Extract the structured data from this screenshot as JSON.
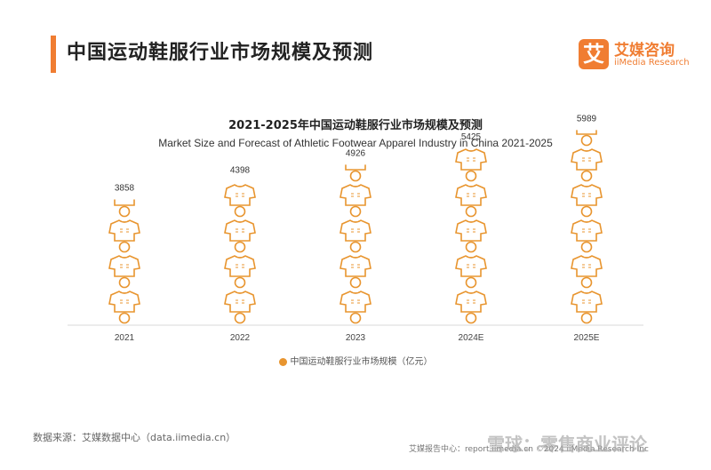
{
  "header": {
    "title": "中国运动鞋服行业市场规模及预测",
    "accent_color": "#f07d32"
  },
  "logo": {
    "mark": "艾",
    "name_cn": "艾媒咨询",
    "name_en": "iiMedia Research",
    "color": "#f07d32"
  },
  "chart_data": {
    "type": "bar",
    "title": "2021-2025年中国运动鞋服行业市场规模及预测",
    "subtitle": "Market Size and Forecast of Athletic Footwear Apparel Industry in China 2021-2025",
    "categories": [
      "2021",
      "2022",
      "2023",
      "2024E",
      "2025E"
    ],
    "series": [
      {
        "name": "中国运动鞋服行业市场规模（亿元）",
        "values": [
          3858,
          4398,
          4926,
          5425,
          5989
        ]
      }
    ],
    "data_labels": [
      "3858",
      "4398",
      "4926",
      "5425",
      "5989"
    ],
    "ylim": [
      0,
      6000
    ],
    "grid": false,
    "legend": "bottom-center",
    "mark_color": "#e8952f"
  },
  "footer": {
    "source": "数据来源：艾媒数据中心（data.iimedia.cn）",
    "report_center": "艾媒报告中心：report.iimedia.cn ©2024 iiMedia Research Inc",
    "watermark": "雪球：零售商业评论"
  }
}
